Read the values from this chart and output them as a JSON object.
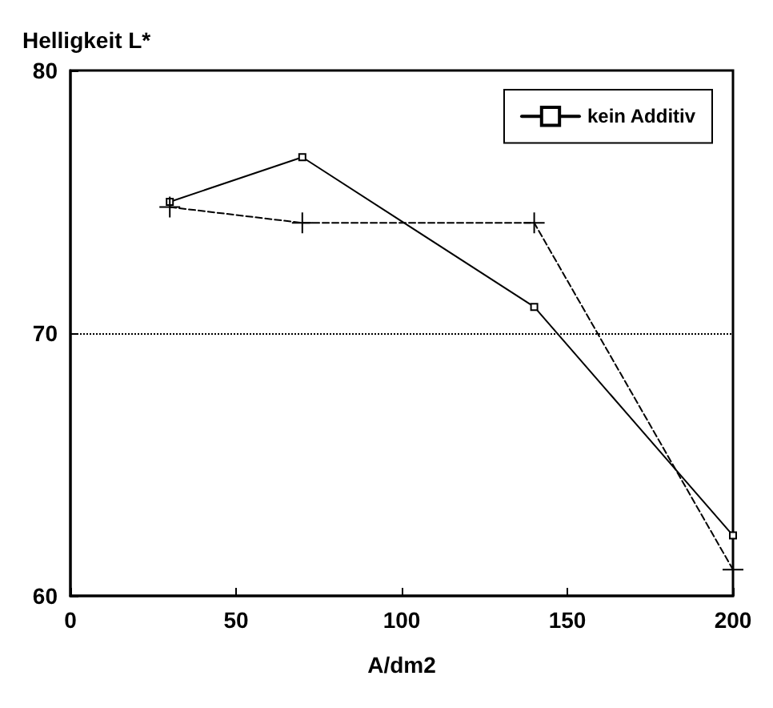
{
  "chart_data": {
    "type": "line",
    "ylabel": "Helligkeit L*",
    "xlabel": "A/dm2",
    "x": [
      30,
      70,
      140,
      200
    ],
    "series": [
      {
        "name": "kein Additiv",
        "color": "#000000",
        "values": [
          75.0,
          76.7,
          71.0,
          62.3
        ],
        "marker": "square",
        "line_style": "solid"
      },
      {
        "color": "#000000",
        "values": [
          74.8,
          74.2,
          74.2,
          61.0
        ],
        "marker": "cross",
        "line_style": "dashed"
      }
    ],
    "xlim": [
      0,
      200
    ],
    "xticks": [
      0,
      50,
      100,
      150,
      200
    ],
    "ylim": [
      60,
      80
    ],
    "yticks": [
      60,
      70,
      80
    ],
    "ref_lines": [
      {
        "axis": "y",
        "value": 70,
        "color": "#000000",
        "line_style": "dotted"
      }
    ],
    "grid": false,
    "legend": "top right"
  }
}
